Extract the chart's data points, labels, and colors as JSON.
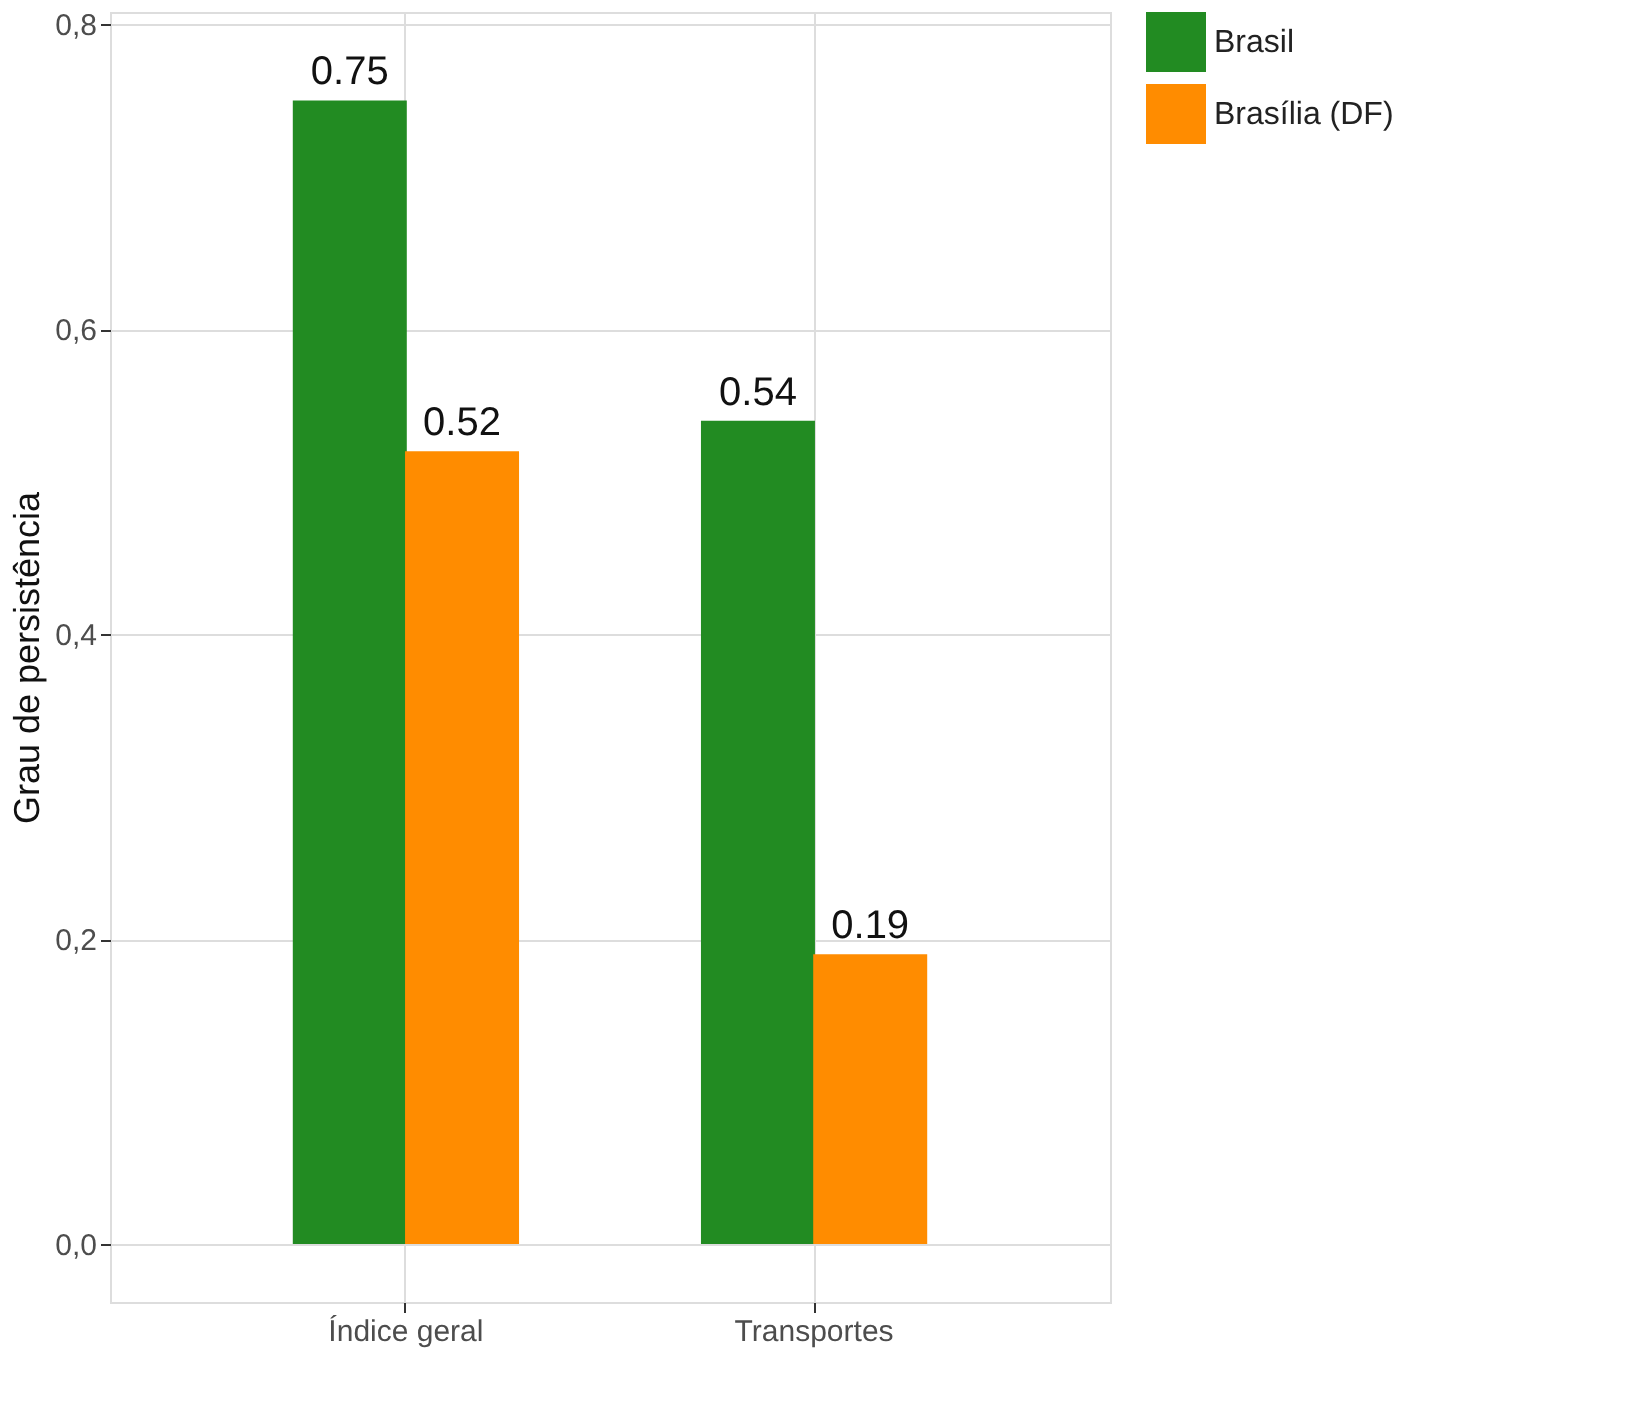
{
  "chart_data": {
    "type": "bar",
    "ylabel": "Grau de persistência",
    "categories": [
      "Índice geral",
      "Transportes"
    ],
    "series": [
      {
        "name": "Brasil",
        "color": "#228b22",
        "values": [
          0.75,
          0.54
        ]
      },
      {
        "name": "Brasília (DF)",
        "color": "#ff8c00",
        "values": [
          0.52,
          0.19
        ]
      }
    ],
    "ylim": [
      -0.038,
      0.808
    ],
    "yticks": [
      {
        "value": 0,
        "label": "0,0"
      },
      {
        "value": 0.2,
        "label": "0,2"
      },
      {
        "value": 0.4,
        "label": "0,4"
      },
      {
        "value": 0.6,
        "label": "0,6"
      },
      {
        "value": 0.8,
        "label": "0,8"
      }
    ],
    "grid": true,
    "legend": "right",
    "data_labels": true
  }
}
